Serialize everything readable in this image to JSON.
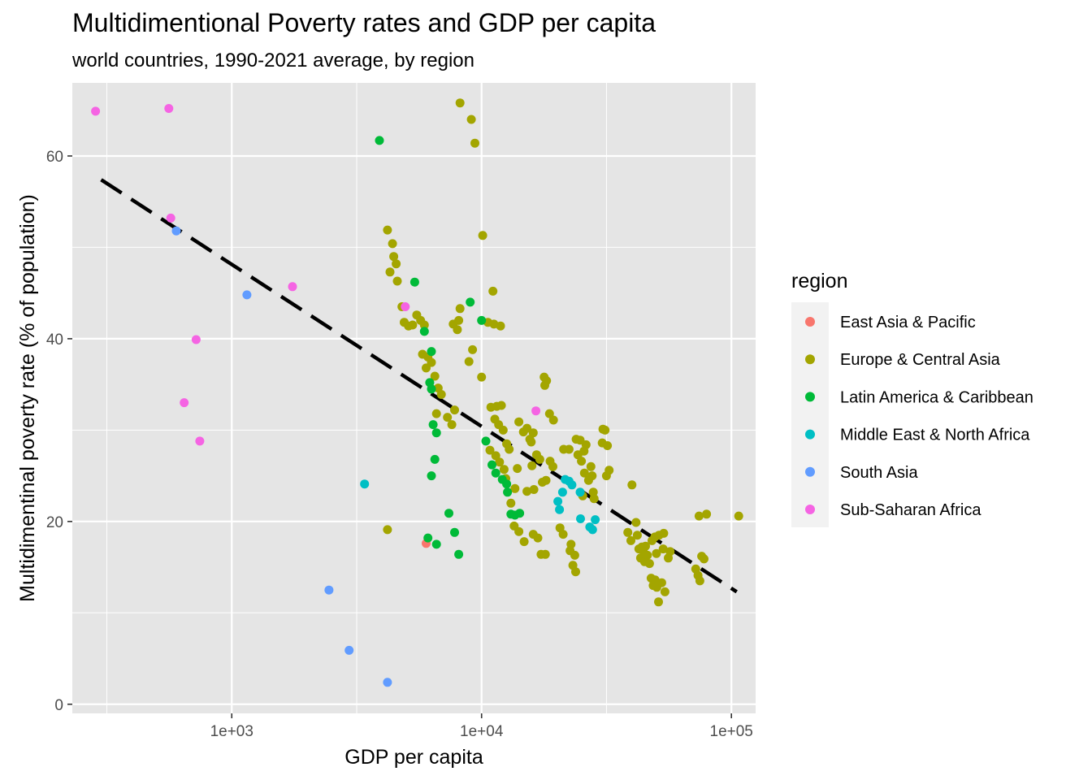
{
  "chart_data": {
    "type": "scatter",
    "title": "Multidimentional Poverty rates and GDP per capita",
    "subtitle": "world countries, 1990-2021 average, by region",
    "xlabel": "GDP per capita",
    "ylabel": "Multidimentinal poverty rate (% of population)",
    "x_scale": "log10",
    "xlim": [
      230,
      125000
    ],
    "ylim": [
      -1,
      68
    ],
    "x_ticks": [
      {
        "value": 1000,
        "label": "1e+03"
      },
      {
        "value": 10000,
        "label": "1e+04"
      },
      {
        "value": 100000,
        "label": "1e+05"
      }
    ],
    "y_ticks": [
      {
        "value": 0,
        "label": "0"
      },
      {
        "value": 20,
        "label": "20"
      },
      {
        "value": 40,
        "label": "40"
      },
      {
        "value": 60,
        "label": "60"
      }
    ],
    "grid": true,
    "background": "#e5e5e5",
    "legend": {
      "title": "region",
      "position": "right"
    },
    "trend_line": {
      "style": "dashed",
      "color": "#000000",
      "points": [
        [
          300,
          57.4
        ],
        [
          105000,
          12.3
        ]
      ]
    },
    "series": [
      {
        "name": "East Asia & Pacific",
        "color": "#F8766D",
        "points": [
          [
            6000,
            17.6
          ]
        ]
      },
      {
        "name": "Europe & Central Asia",
        "color": "#A3A500",
        "points": [
          [
            8200,
            65.8
          ],
          [
            9100,
            64.0
          ],
          [
            9400,
            61.4
          ],
          [
            10100,
            51.3
          ],
          [
            11100,
            45.2
          ],
          [
            4200,
            51.9
          ],
          [
            4400,
            50.4
          ],
          [
            4450,
            49.0
          ],
          [
            4550,
            48.2
          ],
          [
            4300,
            47.3
          ],
          [
            4600,
            46.3
          ],
          [
            4800,
            43.5
          ],
          [
            4900,
            41.8
          ],
          [
            5100,
            41.4
          ],
          [
            5300,
            41.5
          ],
          [
            5500,
            42.6
          ],
          [
            5700,
            42.0
          ],
          [
            5900,
            41.5
          ],
          [
            5800,
            38.3
          ],
          [
            6100,
            38.0
          ],
          [
            6300,
            37.4
          ],
          [
            6000,
            36.8
          ],
          [
            6500,
            35.9
          ],
          [
            6700,
            34.6
          ],
          [
            6900,
            33.9
          ],
          [
            6600,
            31.8
          ],
          [
            7300,
            31.4
          ],
          [
            7600,
            30.6
          ],
          [
            7800,
            32.2
          ],
          [
            7700,
            41.6
          ],
          [
            8100,
            42.0
          ],
          [
            8000,
            41.0
          ],
          [
            8200,
            43.3
          ],
          [
            8900,
            37.5
          ],
          [
            9200,
            38.8
          ],
          [
            10000,
            35.8
          ],
          [
            10600,
            41.8
          ],
          [
            11200,
            41.6
          ],
          [
            11900,
            41.4
          ],
          [
            10900,
            32.5
          ],
          [
            11500,
            32.6
          ],
          [
            12000,
            32.7
          ],
          [
            11300,
            31.2
          ],
          [
            11700,
            30.6
          ],
          [
            12200,
            30.0
          ],
          [
            10800,
            27.8
          ],
          [
            11400,
            27.2
          ],
          [
            12600,
            28.5
          ],
          [
            12900,
            27.9
          ],
          [
            11800,
            26.5
          ],
          [
            12300,
            25.7
          ],
          [
            12500,
            24.7
          ],
          [
            13600,
            23.6
          ],
          [
            13900,
            25.8
          ],
          [
            13100,
            22.0
          ],
          [
            13500,
            19.5
          ],
          [
            14100,
            18.9
          ],
          [
            14800,
            17.8
          ],
          [
            14100,
            30.9
          ],
          [
            14700,
            29.8
          ],
          [
            15200,
            30.2
          ],
          [
            15600,
            29.0
          ],
          [
            16100,
            29.7
          ],
          [
            15800,
            28.7
          ],
          [
            15900,
            26.1
          ],
          [
            16600,
            27.3
          ],
          [
            17100,
            26.8
          ],
          [
            15200,
            23.3
          ],
          [
            16200,
            23.5
          ],
          [
            17500,
            24.3
          ],
          [
            18100,
            24.5
          ],
          [
            16100,
            18.6
          ],
          [
            16800,
            18.2
          ],
          [
            17300,
            16.4
          ],
          [
            18000,
            16.4
          ],
          [
            17800,
            35.8
          ],
          [
            18200,
            35.4
          ],
          [
            17900,
            34.9
          ],
          [
            18700,
            31.8
          ],
          [
            19400,
            31.1
          ],
          [
            18800,
            26.6
          ],
          [
            19300,
            26.0
          ],
          [
            20600,
            19.3
          ],
          [
            21200,
            18.6
          ],
          [
            21300,
            27.9
          ],
          [
            22400,
            27.9
          ],
          [
            22600,
            16.8
          ],
          [
            23200,
            15.2
          ],
          [
            23800,
            14.5
          ],
          [
            23600,
            16.3
          ],
          [
            22800,
            17.5
          ],
          [
            23900,
            29.0
          ],
          [
            24300,
            27.3
          ],
          [
            25100,
            26.6
          ],
          [
            25700,
            27.7
          ],
          [
            26200,
            28.4
          ],
          [
            24800,
            28.9
          ],
          [
            25800,
            25.3
          ],
          [
            25400,
            22.8
          ],
          [
            26800,
            24.5
          ],
          [
            27400,
            26.0
          ],
          [
            28000,
            23.2
          ],
          [
            28200,
            22.5
          ],
          [
            27700,
            25.0
          ],
          [
            30400,
            28.6
          ],
          [
            31200,
            30.0
          ],
          [
            30600,
            30.1
          ],
          [
            31900,
            28.3
          ],
          [
            32400,
            25.6
          ],
          [
            31600,
            25.0
          ],
          [
            40000,
            24.0
          ],
          [
            38500,
            18.8
          ],
          [
            39600,
            17.9
          ],
          [
            41500,
            19.9
          ],
          [
            42000,
            18.5
          ],
          [
            42600,
            17.0
          ],
          [
            43300,
            16.0
          ],
          [
            43800,
            17.2
          ],
          [
            44300,
            16.8
          ],
          [
            44900,
            15.6
          ],
          [
            45300,
            17.3
          ],
          [
            46100,
            16.3
          ],
          [
            47000,
            15.4
          ],
          [
            48100,
            17.9
          ],
          [
            47700,
            13.8
          ],
          [
            48600,
            13.0
          ],
          [
            49500,
            13.6
          ],
          [
            50300,
            12.8
          ],
          [
            51100,
            11.2
          ],
          [
            52600,
            13.3
          ],
          [
            54200,
            12.3
          ],
          [
            49400,
            18.3
          ],
          [
            51300,
            18.5
          ],
          [
            53600,
            18.7
          ],
          [
            55900,
            16.0
          ],
          [
            56800,
            16.7
          ],
          [
            53300,
            17.0
          ],
          [
            50100,
            16.5
          ],
          [
            72000,
            14.8
          ],
          [
            73500,
            14.1
          ],
          [
            74800,
            13.5
          ],
          [
            76000,
            16.2
          ],
          [
            77700,
            15.9
          ],
          [
            74200,
            20.6
          ],
          [
            79500,
            20.8
          ],
          [
            107000,
            20.6
          ],
          [
            4200,
            19.1
          ]
        ]
      },
      {
        "name": "Latin America & Caribbean",
        "color": "#00BA38",
        "points": [
          [
            3900,
            61.7
          ],
          [
            5400,
            46.2
          ],
          [
            9000,
            44.0
          ],
          [
            10000,
            42.0
          ],
          [
            5900,
            40.8
          ],
          [
            6300,
            38.6
          ],
          [
            6200,
            35.2
          ],
          [
            6300,
            34.5
          ],
          [
            6400,
            30.6
          ],
          [
            6600,
            29.7
          ],
          [
            6500,
            26.8
          ],
          [
            6300,
            25.0
          ],
          [
            10400,
            28.8
          ],
          [
            11000,
            26.2
          ],
          [
            11400,
            25.3
          ],
          [
            12100,
            24.6
          ],
          [
            12600,
            24.1
          ],
          [
            12700,
            23.2
          ],
          [
            13100,
            20.8
          ],
          [
            13600,
            20.7
          ],
          [
            14200,
            20.9
          ],
          [
            7400,
            20.9
          ],
          [
            7800,
            18.8
          ],
          [
            8100,
            16.4
          ],
          [
            6100,
            18.2
          ],
          [
            6600,
            17.5
          ]
        ]
      },
      {
        "name": "Middle East & North Africa",
        "color": "#00BFC4",
        "points": [
          [
            3400,
            24.1
          ],
          [
            21600,
            24.6
          ],
          [
            22400,
            24.4
          ],
          [
            21100,
            23.2
          ],
          [
            23000,
            24.0
          ],
          [
            24800,
            23.2
          ],
          [
            20200,
            22.2
          ],
          [
            20500,
            21.3
          ],
          [
            24900,
            20.3
          ],
          [
            27100,
            19.4
          ],
          [
            27800,
            19.1
          ],
          [
            28500,
            20.2
          ]
        ]
      },
      {
        "name": "South Asia",
        "color": "#619CFF",
        "points": [
          [
            600,
            51.8
          ],
          [
            1150,
            44.8
          ],
          [
            2450,
            12.5
          ],
          [
            2950,
            5.9
          ],
          [
            4200,
            2.4
          ]
        ]
      },
      {
        "name": "Sub-Saharan Africa",
        "color": "#F564E3",
        "points": [
          [
            285,
            64.9
          ],
          [
            560,
            65.2
          ],
          [
            570,
            53.2
          ],
          [
            720,
            39.9
          ],
          [
            645,
            33.0
          ],
          [
            745,
            28.8
          ],
          [
            1750,
            45.7
          ],
          [
            4950,
            43.5
          ],
          [
            16500,
            32.1
          ]
        ]
      }
    ]
  }
}
